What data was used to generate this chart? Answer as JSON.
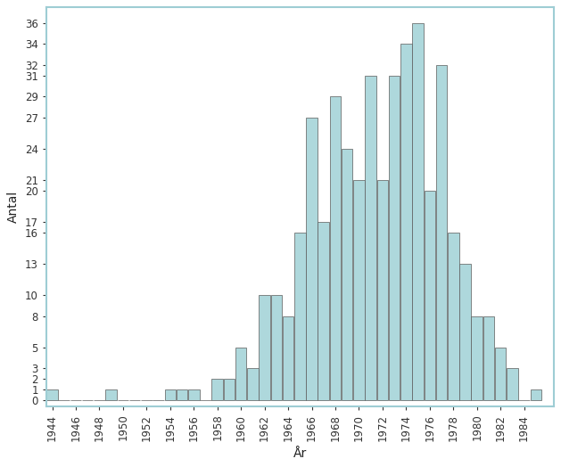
{
  "years": [
    1944,
    1945,
    1946,
    1947,
    1948,
    1949,
    1950,
    1951,
    1952,
    1953,
    1954,
    1955,
    1956,
    1957,
    1958,
    1959,
    1960,
    1961,
    1962,
    1963,
    1964,
    1965,
    1966,
    1967,
    1968,
    1969,
    1970,
    1971,
    1972,
    1973,
    1974,
    1975,
    1976,
    1977,
    1978,
    1979,
    1980,
    1981,
    1982,
    1983,
    1984,
    1985
  ],
  "values": [
    1,
    0,
    0,
    0,
    0,
    1,
    0,
    0,
    0,
    0,
    1,
    1,
    1,
    0,
    2,
    2,
    5,
    3,
    10,
    10,
    8,
    16,
    27,
    17,
    29,
    24,
    21,
    31,
    21,
    31,
    34,
    36,
    20,
    32,
    16,
    13,
    8,
    8,
    5,
    3,
    0,
    1
  ],
  "bar_color": "#aed8dc",
  "bar_edge_color": "#5a5a5a",
  "xlabel": "År",
  "ylabel": "Antal",
  "yticks": [
    0,
    1,
    2,
    3,
    5,
    8,
    10,
    13,
    16,
    17,
    20,
    21,
    24,
    27,
    29,
    31,
    32,
    34,
    36
  ],
  "xtick_years": [
    1944,
    1946,
    1948,
    1950,
    1952,
    1954,
    1956,
    1958,
    1960,
    1962,
    1964,
    1966,
    1968,
    1970,
    1972,
    1974,
    1976,
    1978,
    1980,
    1982,
    1984
  ],
  "xlim": [
    1943.5,
    1986.5
  ],
  "ylim": [
    -0.6,
    37.5
  ],
  "background_color": "#ffffff",
  "border_color": "#9ecdd4",
  "tick_color": "#333333",
  "label_fontsize": 10,
  "tick_fontsize": 8.5
}
